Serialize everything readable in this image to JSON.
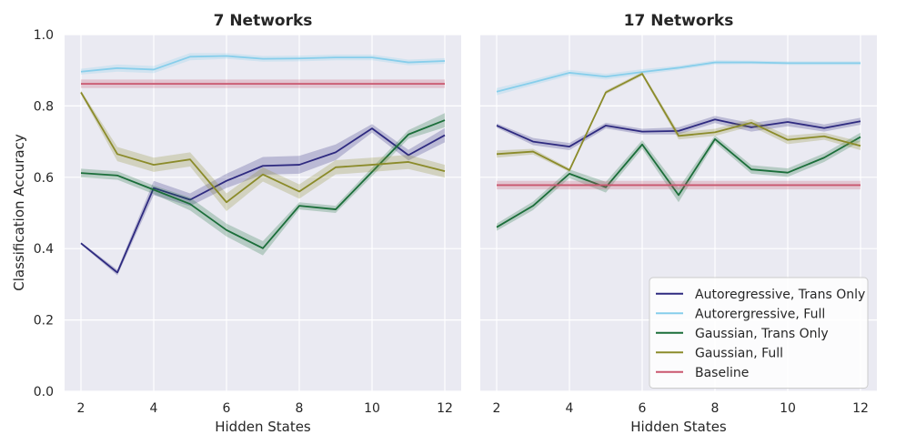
{
  "figure": {
    "ylabel": "Classification Accuracy",
    "xlabel": "Hidden States"
  },
  "colors": {
    "panel_bg": "#eaeaf2",
    "grid": "#ffffff",
    "text": "#262626"
  },
  "legend": {
    "placement": "lower-right",
    "entries": [
      {
        "label": "Autoregressive, Trans Only",
        "color": "#2e2a80"
      },
      {
        "label": "Autorergressive, Full",
        "color": "#87ceeb"
      },
      {
        "label": "Gaussian, Trans Only",
        "color": "#1b6e3a"
      },
      {
        "label": "Gaussian, Full",
        "color": "#8b8b2a"
      },
      {
        "label": "Baseline",
        "color": "#c9566e"
      }
    ]
  },
  "chart_data": [
    {
      "type": "line",
      "title": "7 Networks",
      "xlabel": "Hidden States",
      "ylabel": "Classification Accuracy",
      "x": [
        2,
        3,
        4,
        5,
        6,
        7,
        8,
        9,
        10,
        11,
        12
      ],
      "xlim": [
        1.55,
        12.45
      ],
      "ylim": [
        0.0,
        1.0
      ],
      "xticks": [
        2,
        4,
        6,
        8,
        10,
        12
      ],
      "yticks": [
        0.0,
        0.2,
        0.4,
        0.6,
        0.8,
        1.0
      ],
      "ytick_labels": [
        "0.0",
        "0.2",
        "0.4",
        "0.6",
        "0.8",
        "1.0"
      ],
      "grid": true,
      "series": [
        {
          "name": "Autoregressive, Trans Only",
          "color": "#2e2a80",
          "values": [
            0.415,
            0.333,
            0.57,
            0.537,
            0.59,
            0.632,
            0.635,
            0.67,
            0.737,
            0.662,
            0.718
          ],
          "ci": [
            0.003,
            0.008,
            0.02,
            0.018,
            0.02,
            0.025,
            0.025,
            0.022,
            0.012,
            0.015,
            0.02
          ]
        },
        {
          "name": "Autorergressive, Full",
          "color": "#87ceeb",
          "values": [
            0.896,
            0.906,
            0.902,
            0.938,
            0.94,
            0.932,
            0.933,
            0.936,
            0.936,
            0.922,
            0.926
          ],
          "ci": [
            0.008,
            0.01,
            0.01,
            0.01,
            0.008,
            0.008,
            0.008,
            0.008,
            0.008,
            0.008,
            0.008
          ]
        },
        {
          "name": "Gaussian, Trans Only",
          "color": "#1b6e3a",
          "values": [
            0.612,
            0.605,
            0.565,
            0.525,
            0.452,
            0.401,
            0.52,
            0.51,
            0.615,
            0.72,
            0.76
          ],
          "ci": [
            0.012,
            0.012,
            0.012,
            0.018,
            0.018,
            0.02,
            0.01,
            0.01,
            0.012,
            0.012,
            0.02
          ]
        },
        {
          "name": "Gaussian, Full",
          "color": "#8b8b2a",
          "values": [
            0.838,
            0.665,
            0.635,
            0.65,
            0.53,
            0.608,
            0.56,
            0.628,
            0.635,
            0.643,
            0.617
          ],
          "ci": [
            0.005,
            0.02,
            0.02,
            0.02,
            0.025,
            0.02,
            0.02,
            0.02,
            0.02,
            0.02,
            0.018
          ]
        },
        {
          "name": "Baseline",
          "color": "#c9566e",
          "values": [
            0.862,
            0.862,
            0.862,
            0.862,
            0.862,
            0.862,
            0.862,
            0.862,
            0.862,
            0.862,
            0.862
          ],
          "ci": [
            0.012,
            0.012,
            0.012,
            0.012,
            0.012,
            0.012,
            0.012,
            0.012,
            0.012,
            0.012,
            0.012
          ]
        }
      ]
    },
    {
      "type": "line",
      "title": "17 Networks",
      "xlabel": "Hidden States",
      "x": [
        2,
        3,
        4,
        5,
        6,
        7,
        8,
        9,
        10,
        11,
        12
      ],
      "xlim": [
        1.55,
        12.45
      ],
      "ylim": [
        0.0,
        1.0
      ],
      "xticks": [
        2,
        4,
        6,
        8,
        10,
        12
      ],
      "yticks": [
        0.0,
        0.2,
        0.4,
        0.6,
        0.8,
        1.0
      ],
      "grid": true,
      "legend": "lower-right",
      "series": [
        {
          "name": "Autoregressive, Trans Only",
          "color": "#2e2a80",
          "values": [
            0.745,
            0.7,
            0.686,
            0.745,
            0.728,
            0.73,
            0.762,
            0.74,
            0.755,
            0.738,
            0.757
          ],
          "ci": [
            0.006,
            0.01,
            0.01,
            0.008,
            0.008,
            0.01,
            0.01,
            0.012,
            0.012,
            0.01,
            0.01
          ]
        },
        {
          "name": "Autorergressive, Full",
          "color": "#87ceeb",
          "values": [
            0.84,
            0.866,
            0.893,
            0.882,
            0.895,
            0.907,
            0.922,
            0.922,
            0.92,
            0.92,
            0.92
          ],
          "ci": [
            0.01,
            0.008,
            0.008,
            0.008,
            0.008,
            0.006,
            0.006,
            0.005,
            0.005,
            0.005,
            0.005
          ]
        },
        {
          "name": "Gaussian, Trans Only",
          "color": "#1b6e3a",
          "values": [
            0.46,
            0.52,
            0.61,
            0.572,
            0.692,
            0.55,
            0.707,
            0.622,
            0.613,
            0.655,
            0.713
          ],
          "ci": [
            0.01,
            0.012,
            0.012,
            0.015,
            0.012,
            0.02,
            0.01,
            0.012,
            0.012,
            0.012,
            0.012
          ]
        },
        {
          "name": "Gaussian, Full",
          "color": "#8b8b2a",
          "values": [
            0.665,
            0.672,
            0.62,
            0.838,
            0.89,
            0.716,
            0.726,
            0.753,
            0.705,
            0.715,
            0.688
          ],
          "ci": [
            0.01,
            0.008,
            0.005,
            0.005,
            0.005,
            0.01,
            0.01,
            0.01,
            0.012,
            0.01,
            0.012
          ]
        },
        {
          "name": "Baseline",
          "color": "#c9566e",
          "values": [
            0.578,
            0.578,
            0.578,
            0.578,
            0.578,
            0.578,
            0.578,
            0.578,
            0.578,
            0.578,
            0.578
          ],
          "ci": [
            0.012,
            0.012,
            0.012,
            0.012,
            0.012,
            0.012,
            0.012,
            0.012,
            0.012,
            0.012,
            0.012
          ]
        }
      ]
    }
  ]
}
